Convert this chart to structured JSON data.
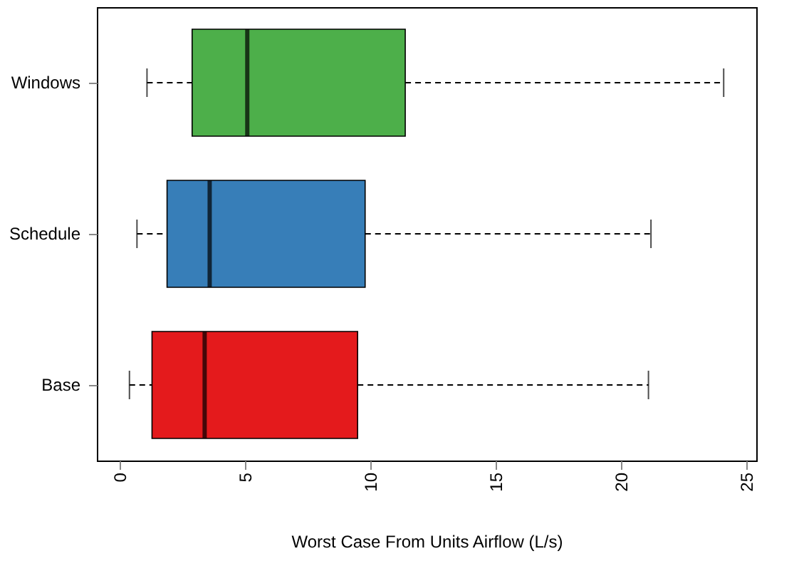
{
  "chart_data": {
    "type": "box",
    "orientation": "horizontal",
    "xlabel": "Worst Case From Units Airflow (L/s)",
    "categories": [
      "Windows",
      "Schedule",
      "Base"
    ],
    "colors": [
      "#4daf4a",
      "#377eb8",
      "#e41a1c"
    ],
    "boxes": [
      {
        "low": 1.1,
        "q1": 2.9,
        "median": 5.1,
        "q3": 11.4,
        "high": 24.1
      },
      {
        "low": 0.7,
        "q1": 1.9,
        "median": 3.6,
        "q3": 9.8,
        "high": 21.2
      },
      {
        "low": 0.4,
        "q1": 1.3,
        "median": 3.4,
        "q3": 9.5,
        "high": 21.1
      }
    ],
    "xlim": [
      -0.9,
      25.4
    ],
    "xticks": [
      0,
      5,
      10,
      15,
      20,
      25
    ],
    "grid": false,
    "line_style": "dashed"
  }
}
